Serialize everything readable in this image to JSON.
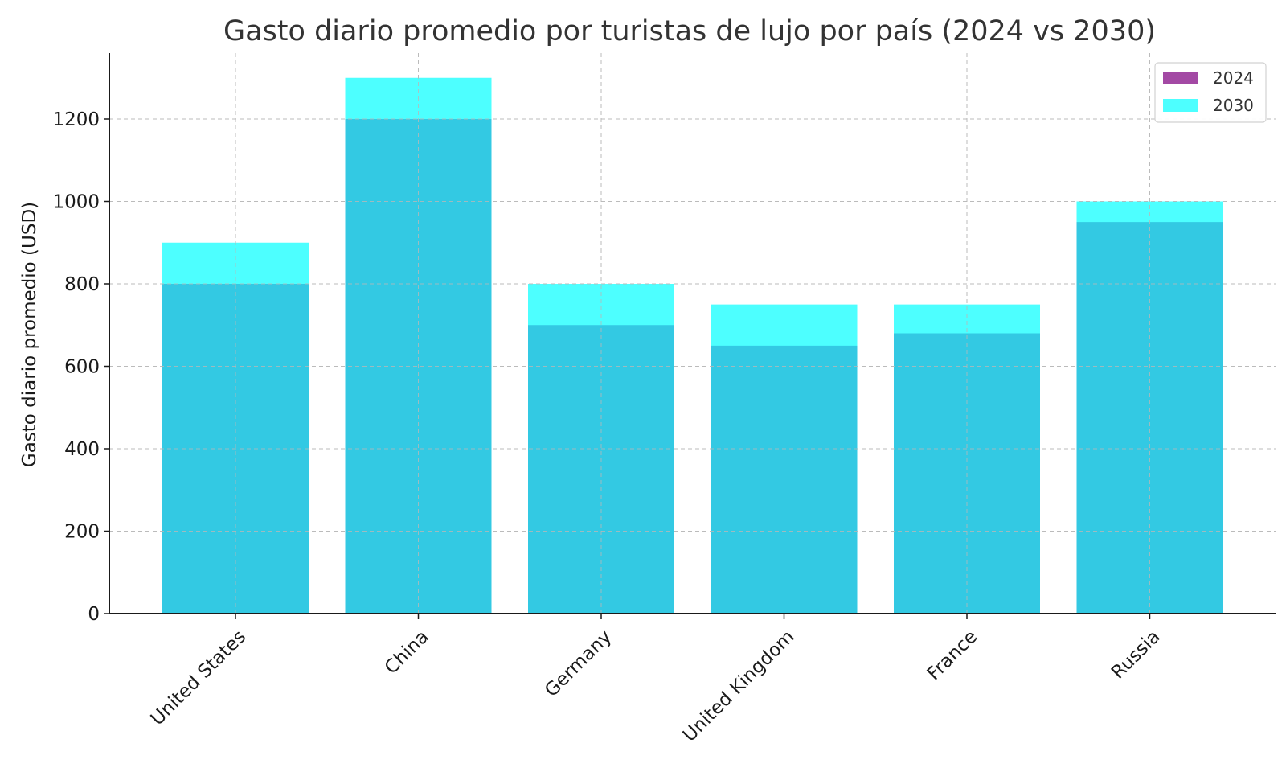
{
  "chart_data": {
    "type": "bar",
    "title": "Gasto diario promedio por turistas de lujo por país (2024 vs 2030)",
    "xlabel": "",
    "ylabel": "Gasto diario promedio (USD)",
    "categories": [
      "United States",
      "China",
      "Germany",
      "United Kingdom",
      "France",
      "Russia"
    ],
    "series": [
      {
        "name": "2024",
        "values": [
          800,
          1200,
          700,
          650,
          680,
          950
        ],
        "color": "#a349a4"
      },
      {
        "name": "2030",
        "values": [
          900,
          1300,
          800,
          750,
          750,
          1000
        ],
        "color": "#4dffff"
      }
    ],
    "overlap_color": "#33c9e3",
    "ylim": [
      0,
      1360
    ],
    "yticks": [
      0,
      200,
      400,
      600,
      800,
      1000,
      1200
    ],
    "grid": true,
    "legend": "top-right"
  }
}
